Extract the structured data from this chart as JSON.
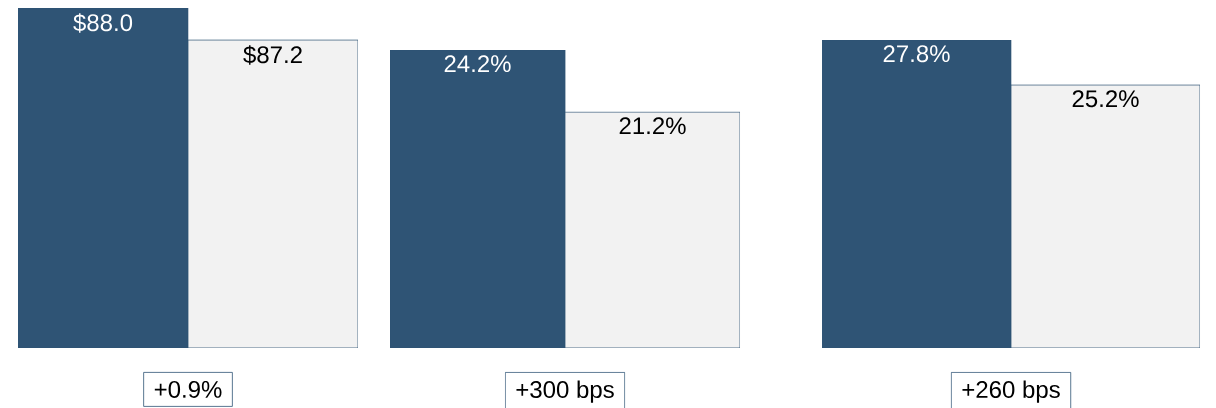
{
  "chart_data": [
    {
      "type": "bar",
      "categories": [
        null,
        null
      ],
      "values": [
        88.0,
        87.2
      ],
      "colors": [
        "#2f5475",
        "#f2f2f2"
      ],
      "value_labels": [
        "$88.0",
        "$87.2"
      ],
      "ylim": [
        79.5,
        88.0
      ],
      "tick_labels": false,
      "annotations": [
        "+0.9%"
      ]
    },
    {
      "type": "bar",
      "categories": [
        null,
        null
      ],
      "values": [
        24.2,
        21.2
      ],
      "colors": [
        "#2f5475",
        "#f2f2f2"
      ],
      "value_labels": [
        "24.2%",
        "21.2%"
      ],
      "ylim": [
        9.8,
        24.2
      ],
      "tick_labels": false,
      "annotations": [
        "+300 bps"
      ]
    },
    {
      "type": "bar",
      "categories": [
        null,
        null
      ],
      "values": [
        27.8,
        25.2
      ],
      "colors": [
        "#2f5475",
        "#f2f2f2"
      ],
      "value_labels": [
        "27.8%",
        "25.2%"
      ],
      "ylim": [
        10.0,
        27.8
      ],
      "tick_labels": false,
      "annotations": [
        "+260 bps"
      ]
    }
  ]
}
